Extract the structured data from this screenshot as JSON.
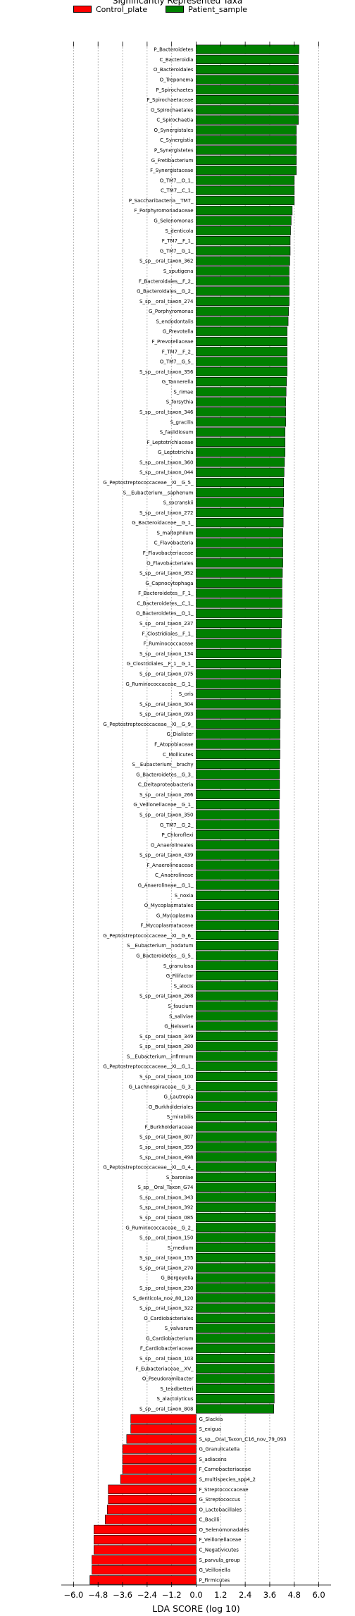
{
  "chart_data": {
    "type": "bar",
    "orientation": "horizontal",
    "title": "Significantly Represented Taxa",
    "xlabel": "LDA SCORE (log 10)",
    "xlim": [
      -6.6,
      6.6
    ],
    "xticks": [
      -6.0,
      -4.8,
      -3.6,
      -2.4,
      -1.2,
      0.0,
      1.2,
      2.4,
      3.6,
      4.8,
      6.0
    ],
    "xtick_labels": [
      "−6.0",
      "−4.8",
      "−3.6",
      "−2.4",
      "−1.2",
      "0.0",
      "1.2",
      "2.4",
      "3.6",
      "4.8",
      "6.0"
    ],
    "grid": "vertical dashed",
    "legend_position": "top-left",
    "series": [
      {
        "name": "Control_plate",
        "color": "#ff0000"
      },
      {
        "name": "Patient_sample",
        "color": "#008000"
      }
    ],
    "bars": [
      {
        "label": "P_Bacteroidetes",
        "value": 5.03,
        "group": 1
      },
      {
        "label": "C_Bacteroidia",
        "value": 5.0,
        "group": 1
      },
      {
        "label": "O_Bacteroidales",
        "value": 5.0,
        "group": 1
      },
      {
        "label": "O_Treponema",
        "value": 5.0,
        "group": 1
      },
      {
        "label": "P_Spirochaetes",
        "value": 5.0,
        "group": 1
      },
      {
        "label": "F_Spirochaetaceae",
        "value": 5.0,
        "group": 1
      },
      {
        "label": "O_Spirochaetales",
        "value": 5.0,
        "group": 1
      },
      {
        "label": "C_Spirochaetia",
        "value": 5.0,
        "group": 1
      },
      {
        "label": "O_Synergistales",
        "value": 4.9,
        "group": 1
      },
      {
        "label": "C_Synergistia",
        "value": 4.9,
        "group": 1
      },
      {
        "label": "P_Synergistetes",
        "value": 4.9,
        "group": 1
      },
      {
        "label": "G_Fretibacterium",
        "value": 4.9,
        "group": 1
      },
      {
        "label": "F_Synergistaceae",
        "value": 4.9,
        "group": 1
      },
      {
        "label": "O_TM7__O_1_",
        "value": 4.8,
        "group": 1
      },
      {
        "label": "C_TM7__C_1_",
        "value": 4.8,
        "group": 1
      },
      {
        "label": "P_Saccharibacteria__TM7_",
        "value": 4.8,
        "group": 1
      },
      {
        "label": "F_Porphyromonadaceae",
        "value": 4.7,
        "group": 1
      },
      {
        "label": "G_Selenomonas",
        "value": 4.65,
        "group": 1
      },
      {
        "label": "S_denticola",
        "value": 4.62,
        "group": 1
      },
      {
        "label": "F_TM7__F_1_",
        "value": 4.6,
        "group": 1
      },
      {
        "label": "G_TM7__G_1_",
        "value": 4.6,
        "group": 1
      },
      {
        "label": "S_sp__oral_taxon_362",
        "value": 4.58,
        "group": 1
      },
      {
        "label": "S_sputigena",
        "value": 4.55,
        "group": 1
      },
      {
        "label": "F_Bacteroidales__F_2_",
        "value": 4.55,
        "group": 1
      },
      {
        "label": "G_Bacteroidales__G_2_",
        "value": 4.55,
        "group": 1
      },
      {
        "label": "S_sp__oral_taxon_274",
        "value": 4.55,
        "group": 1
      },
      {
        "label": "G_Porphyromonas",
        "value": 4.52,
        "group": 1
      },
      {
        "label": "S_endodontalis",
        "value": 4.5,
        "group": 1
      },
      {
        "label": "G_Prevotella",
        "value": 4.45,
        "group": 1
      },
      {
        "label": "F_Prevotellaceae",
        "value": 4.45,
        "group": 1
      },
      {
        "label": "F_TM7__F_2_",
        "value": 4.45,
        "group": 1
      },
      {
        "label": "O_TM7__G_5_",
        "value": 4.45,
        "group": 1
      },
      {
        "label": "S_sp__oral_taxon_356",
        "value": 4.45,
        "group": 1
      },
      {
        "label": "G_Tannerella",
        "value": 4.42,
        "group": 1
      },
      {
        "label": "S_rimae",
        "value": 4.4,
        "group": 1
      },
      {
        "label": "S_forsythia",
        "value": 4.38,
        "group": 1
      },
      {
        "label": "S_sp__oral_taxon_346",
        "value": 4.38,
        "group": 1
      },
      {
        "label": "S_gracilis",
        "value": 4.38,
        "group": 1
      },
      {
        "label": "S_faslidiosum",
        "value": 4.35,
        "group": 1
      },
      {
        "label": "F_Leptotrichiaceae",
        "value": 4.35,
        "group": 1
      },
      {
        "label": "G_Leptotrichia",
        "value": 4.35,
        "group": 1
      },
      {
        "label": "S_sp__oral_taxon_360",
        "value": 4.32,
        "group": 1
      },
      {
        "label": "S_sp__oral_taxon_044",
        "value": 4.3,
        "group": 1
      },
      {
        "label": "G_Peptostreptococcaceae__XI__G_5_",
        "value": 4.28,
        "group": 1
      },
      {
        "label": "S__Eubacterium__saphenum",
        "value": 4.28,
        "group": 1
      },
      {
        "label": "S_socranskii",
        "value": 4.28,
        "group": 1
      },
      {
        "label": "S_sp__oral_taxon_272",
        "value": 4.26,
        "group": 1
      },
      {
        "label": "G_Bacteroidaceae__G_1_",
        "value": 4.26,
        "group": 1
      },
      {
        "label": "S_maltophilum",
        "value": 4.24,
        "group": 1
      },
      {
        "label": "C_Flavobacteria",
        "value": 4.24,
        "group": 1
      },
      {
        "label": "F_Flavobacteriaceae",
        "value": 4.24,
        "group": 1
      },
      {
        "label": "O_Flavobacteriales",
        "value": 4.24,
        "group": 1
      },
      {
        "label": "S_sp__oral_taxon_952",
        "value": 4.22,
        "group": 1
      },
      {
        "label": "G_Capnocytophaga",
        "value": 4.2,
        "group": 1
      },
      {
        "label": "F_Bacteroidetes__F_1_",
        "value": 4.2,
        "group": 1
      },
      {
        "label": "C_Bacteroidetes__C_1_",
        "value": 4.2,
        "group": 1
      },
      {
        "label": "O_Bacteroidetes__O_1_",
        "value": 4.2,
        "group": 1
      },
      {
        "label": "S_sp__oral_taxon_237",
        "value": 4.18,
        "group": 1
      },
      {
        "label": "F_Clostridiales__F_1_",
        "value": 4.16,
        "group": 1
      },
      {
        "label": "F_Ruminococcaceae",
        "value": 4.16,
        "group": 1
      },
      {
        "label": "S_sp__oral_taxon_134",
        "value": 4.16,
        "group": 1
      },
      {
        "label": "G_Clostridiales__F_1__G_1_",
        "value": 4.14,
        "group": 1
      },
      {
        "label": "S_sp__oral_taxon_075",
        "value": 4.14,
        "group": 1
      },
      {
        "label": "G_Ruminococcaceae__G_1_",
        "value": 4.12,
        "group": 1
      },
      {
        "label": "S_oris",
        "value": 4.12,
        "group": 1
      },
      {
        "label": "S_sp__oral_taxon_304",
        "value": 4.12,
        "group": 1
      },
      {
        "label": "S_sp__oral_taxon_093",
        "value": 4.12,
        "group": 1
      },
      {
        "label": "G_Peptostreptococcaceae__XI__G_9_",
        "value": 4.1,
        "group": 1
      },
      {
        "label": "G_Dialister",
        "value": 4.1,
        "group": 1
      },
      {
        "label": "F_Atopobiaceae",
        "value": 4.1,
        "group": 1
      },
      {
        "label": "C_Mollicutes",
        "value": 4.1,
        "group": 1
      },
      {
        "label": "S__Eubacterium__brachy",
        "value": 4.08,
        "group": 1
      },
      {
        "label": "G_Bacteroidetes__G_3_",
        "value": 4.08,
        "group": 1
      },
      {
        "label": "C_Deltaproteobacteria",
        "value": 4.08,
        "group": 1
      },
      {
        "label": "S_sp__oral_taxon_266",
        "value": 4.08,
        "group": 1
      },
      {
        "label": "G_Veillonellaceae__G_1_",
        "value": 4.06,
        "group": 1
      },
      {
        "label": "S_sp__oral_taxon_350",
        "value": 4.06,
        "group": 1
      },
      {
        "label": "G_TM7__G_2_",
        "value": 4.06,
        "group": 1
      },
      {
        "label": "P_Chloroflexi",
        "value": 4.05,
        "group": 1
      },
      {
        "label": "O_Anaerolineales",
        "value": 4.05,
        "group": 1
      },
      {
        "label": "S_sp__oral_taxon_439",
        "value": 4.05,
        "group": 1
      },
      {
        "label": "F_Anaerolineaceae",
        "value": 4.05,
        "group": 1
      },
      {
        "label": "C_Anaerolineae",
        "value": 4.05,
        "group": 1
      },
      {
        "label": "G_Anaerolineae__G_1_",
        "value": 4.05,
        "group": 1
      },
      {
        "label": "S_noxia",
        "value": 4.04,
        "group": 1
      },
      {
        "label": "O_Mycoplasmatales",
        "value": 4.04,
        "group": 1
      },
      {
        "label": "G_Mycoplasma",
        "value": 4.04,
        "group": 1
      },
      {
        "label": "F_Mycoplasmataceae",
        "value": 4.04,
        "group": 1
      },
      {
        "label": "G_Peptostreptococcaceae__XI__G_6_",
        "value": 4.02,
        "group": 1
      },
      {
        "label": "S__Eubacterium__nodatum",
        "value": 4.02,
        "group": 1
      },
      {
        "label": "G_Bacteroidetes__G_5_",
        "value": 4.0,
        "group": 1
      },
      {
        "label": "S_granulosa",
        "value": 4.0,
        "group": 1
      },
      {
        "label": "G_Filifactor",
        "value": 4.0,
        "group": 1
      },
      {
        "label": "S_alocis",
        "value": 4.0,
        "group": 1
      },
      {
        "label": "S_sp__oral_taxon_268",
        "value": 4.0,
        "group": 1
      },
      {
        "label": "S_faucium",
        "value": 3.98,
        "group": 1
      },
      {
        "label": "S_saliviae",
        "value": 3.98,
        "group": 1
      },
      {
        "label": "G_Neisseria",
        "value": 3.98,
        "group": 1
      },
      {
        "label": "S_sp__oral_taxon_349",
        "value": 3.98,
        "group": 1
      },
      {
        "label": "S_sp__oral_taxon_280",
        "value": 3.98,
        "group": 1
      },
      {
        "label": "S__Eubacterium__infirmum",
        "value": 3.96,
        "group": 1
      },
      {
        "label": "G_Peptostreptococcaceae__XI__G_1_",
        "value": 3.96,
        "group": 1
      },
      {
        "label": "S_sp__oral_taxon_100",
        "value": 3.96,
        "group": 1
      },
      {
        "label": "G_Lachnospiraceae__G_3_",
        "value": 3.96,
        "group": 1
      },
      {
        "label": "G_Lautropia",
        "value": 3.96,
        "group": 1
      },
      {
        "label": "O_Burkholderiales",
        "value": 3.94,
        "group": 1
      },
      {
        "label": "S_mirabilis",
        "value": 3.94,
        "group": 1
      },
      {
        "label": "F_Burkholderiaceae",
        "value": 3.94,
        "group": 1
      },
      {
        "label": "S_sp__oral_taxon_807",
        "value": 3.92,
        "group": 1
      },
      {
        "label": "S_sp__oral_taxon_359",
        "value": 3.92,
        "group": 1
      },
      {
        "label": "S_sp__oral_taxon_498",
        "value": 3.92,
        "group": 1
      },
      {
        "label": "G_Peptostreptococcaceae__XI__G_4_",
        "value": 3.9,
        "group": 1
      },
      {
        "label": "S_baroniae",
        "value": 3.9,
        "group": 1
      },
      {
        "label": "S_sp__Oral_Taxon_G74",
        "value": 3.9,
        "group": 1
      },
      {
        "label": "S_sp__oral_taxon_343",
        "value": 3.9,
        "group": 1
      },
      {
        "label": "S_sp__oral_taxon_392",
        "value": 3.88,
        "group": 1
      },
      {
        "label": "S_sp__oral_taxon_085",
        "value": 3.88,
        "group": 1
      },
      {
        "label": "G_Ruminococcaceae__G_2_",
        "value": 3.88,
        "group": 1
      },
      {
        "label": "S_sp__oral_taxon_150",
        "value": 3.86,
        "group": 1
      },
      {
        "label": "S_medium",
        "value": 3.86,
        "group": 1
      },
      {
        "label": "S_sp__oral_taxon_155",
        "value": 3.86,
        "group": 1
      },
      {
        "label": "S_sp__oral_taxon_270",
        "value": 3.86,
        "group": 1
      },
      {
        "label": "G_Bergeyella",
        "value": 3.85,
        "group": 1
      },
      {
        "label": "S_sp__oral_taxon_230",
        "value": 3.85,
        "group": 1
      },
      {
        "label": "S_denticola_nov_80_120",
        "value": 3.85,
        "group": 1
      },
      {
        "label": "S_sp__oral_taxon_322",
        "value": 3.84,
        "group": 1
      },
      {
        "label": "O_Cardiobacteriales",
        "value": 3.84,
        "group": 1
      },
      {
        "label": "S_valvarum",
        "value": 3.84,
        "group": 1
      },
      {
        "label": "G_Cardiobacterium",
        "value": 3.84,
        "group": 1
      },
      {
        "label": "F_Cardiobacteriaceae",
        "value": 3.84,
        "group": 1
      },
      {
        "label": "S_sp__oral_taxon_103",
        "value": 3.82,
        "group": 1
      },
      {
        "label": "F_Eubacteriaceae__XV_",
        "value": 3.82,
        "group": 1
      },
      {
        "label": "O_Pseudoramibacter",
        "value": 3.82,
        "group": 1
      },
      {
        "label": "S_teadbetteri",
        "value": 3.82,
        "group": 1
      },
      {
        "label": "S_alactolyticus",
        "value": 3.82,
        "group": 1
      },
      {
        "label": "S_sp__oral_taxon_808",
        "value": 3.8,
        "group": 1
      },
      {
        "label": "G_Slackia",
        "value": -3.2,
        "group": 0
      },
      {
        "label": "S_exigua",
        "value": -3.2,
        "group": 0
      },
      {
        "label": "S_sp__Oral_Taxon_C16_nov_79_093",
        "value": -3.4,
        "group": 0
      },
      {
        "label": "G_Granulicatella",
        "value": -3.6,
        "group": 0
      },
      {
        "label": "S_adiacens",
        "value": -3.6,
        "group": 0
      },
      {
        "label": "F_Carnobacteriaceae",
        "value": -3.6,
        "group": 0
      },
      {
        "label": "S_multispecies_spp4_2",
        "value": -3.7,
        "group": 0
      },
      {
        "label": "F_Streptococcaceae",
        "value": -4.3,
        "group": 0
      },
      {
        "label": "G_Streptococcus",
        "value": -4.3,
        "group": 0
      },
      {
        "label": "O_Lactobacillales",
        "value": -4.35,
        "group": 0
      },
      {
        "label": "C_Bacilli",
        "value": -4.45,
        "group": 0
      },
      {
        "label": "O_Selenomonadales",
        "value": -5.0,
        "group": 0
      },
      {
        "label": "F_Veillonellaceae",
        "value": -5.0,
        "group": 0
      },
      {
        "label": "C_Negativicutes",
        "value": -5.0,
        "group": 0
      },
      {
        "label": "S_parvula_group",
        "value": -5.1,
        "group": 0
      },
      {
        "label": "G_Veillonella",
        "value": -5.1,
        "group": 0
      },
      {
        "label": "P_Firmicutes",
        "value": -5.2,
        "group": 0
      }
    ]
  }
}
